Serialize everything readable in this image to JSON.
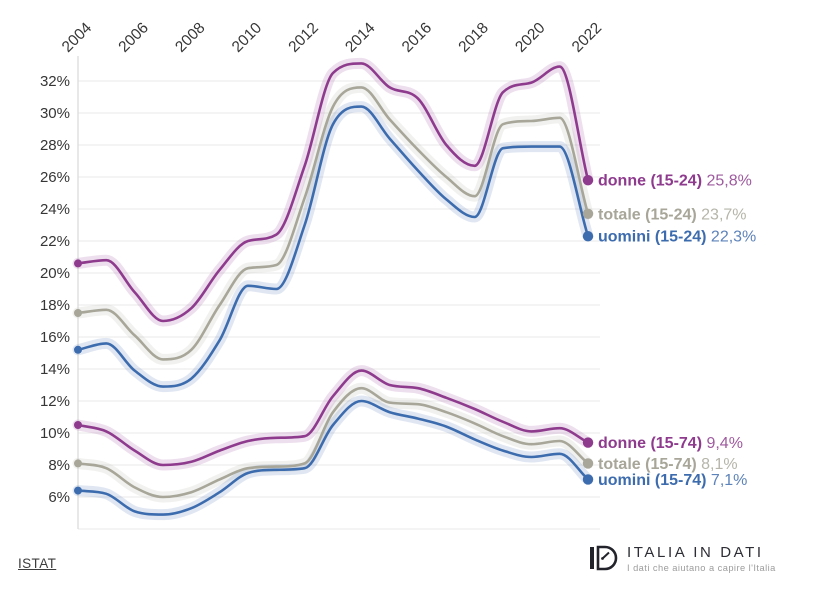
{
  "chart_data": {
    "type": "line",
    "x": [
      2004,
      2005,
      2006,
      2007,
      2008,
      2009,
      2010,
      2011,
      2012,
      2013,
      2014,
      2015,
      2016,
      2017,
      2018,
      2019,
      2020,
      2021,
      2022
    ],
    "x_tick_labels": [
      "2004",
      "2006",
      "2008",
      "2010",
      "2012",
      "2014",
      "2016",
      "2018",
      "2020",
      "2022"
    ],
    "y_tick_labels": [
      "32%",
      "30%",
      "28%",
      "26%",
      "24%",
      "22%",
      "20%",
      "18%",
      "16%",
      "14%",
      "12%",
      "10%",
      "8%",
      "6%"
    ],
    "xlim": [
      2004,
      2022
    ],
    "ylim": [
      4,
      34
    ],
    "grid": true,
    "legend_position": "right-of-line-ends",
    "series": [
      {
        "name": "donne (15-24)",
        "end_value_label": "25,8%",
        "color": "#8e3b8e",
        "value_color": "#9e5a9e",
        "values": [
          20.6,
          20.8,
          18.8,
          17.0,
          17.8,
          20.2,
          22.0,
          22.4,
          26.7,
          32.5,
          33.1,
          31.6,
          30.9,
          28.0,
          26.7,
          31.3,
          31.9,
          32.9,
          25.8
        ]
      },
      {
        "name": "totale (15-24)",
        "end_value_label": "23,7%",
        "color": "#a7a699",
        "value_color": "#b6b5aa",
        "values": [
          17.5,
          17.7,
          16.1,
          14.6,
          15.2,
          18.0,
          20.3,
          20.5,
          24.7,
          30.4,
          31.6,
          29.6,
          27.7,
          26.0,
          24.8,
          29.3,
          29.5,
          29.7,
          23.7
        ]
      },
      {
        "name": "uomini (15-24)",
        "end_value_label": "22,3%",
        "color": "#3d6cae",
        "value_color": "#5d83bb",
        "values": [
          15.2,
          15.6,
          13.9,
          12.9,
          13.4,
          15.8,
          19.2,
          19.0,
          23.0,
          29.3,
          30.4,
          28.4,
          26.4,
          24.6,
          23.5,
          27.8,
          27.9,
          27.9,
          22.3
        ]
      },
      {
        "name": "donne (15-74)",
        "end_value_label": "9,4%",
        "color": "#8e3b8e",
        "value_color": "#9e5a9e",
        "values": [
          10.5,
          10.1,
          8.9,
          8.0,
          8.2,
          8.9,
          9.5,
          9.7,
          9.8,
          12.3,
          13.9,
          13.0,
          12.8,
          12.2,
          11.5,
          10.7,
          10.1,
          10.3,
          9.4
        ]
      },
      {
        "name": "totale (15-74)",
        "end_value_label": "8,1%",
        "color": "#a7a699",
        "value_color": "#b6b5aa",
        "values": [
          8.1,
          7.8,
          6.6,
          6.0,
          6.3,
          7.1,
          7.8,
          7.9,
          8.1,
          11.3,
          12.8,
          11.9,
          11.8,
          11.3,
          10.6,
          9.8,
          9.3,
          9.5,
          8.1
        ]
      },
      {
        "name": "uomini (15-74)",
        "end_value_label": "7,1%",
        "color": "#3d6cae",
        "value_color": "#5d83bb",
        "values": [
          6.4,
          6.2,
          5.1,
          4.9,
          5.3,
          6.3,
          7.5,
          7.7,
          7.8,
          10.5,
          12.0,
          11.3,
          10.9,
          10.4,
          9.6,
          8.9,
          8.5,
          8.7,
          7.1
        ]
      }
    ]
  },
  "footer": {
    "source_label": "ISTAT"
  },
  "brand": {
    "name": "ITALIA IN DATI",
    "tagline": "I dati che aiutano a capire l'Italia",
    "logo_monogram": "ID"
  },
  "colors": {
    "grid": "#eaeaea",
    "axis": "#d9d9d9",
    "tick_text": "#363636",
    "background": "#ffffff"
  }
}
